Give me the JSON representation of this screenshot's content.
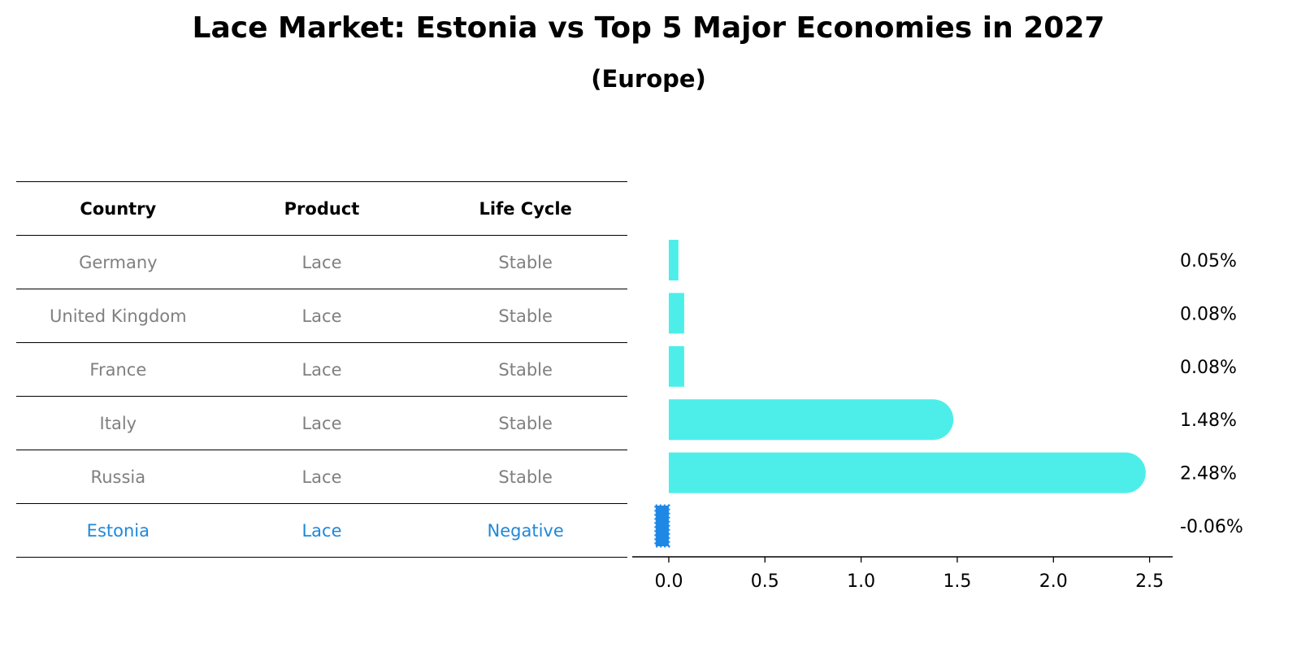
{
  "title": "Lace Market: Estonia vs Top 5 Major Economies in 2027",
  "subtitle": "(Europe)",
  "table": {
    "headers": [
      "Country",
      "Product",
      "Life Cycle"
    ],
    "rows": [
      [
        "Germany",
        "Lace",
        "Stable"
      ],
      [
        "United Kingdom",
        "Lace",
        "Stable"
      ],
      [
        "France",
        "Lace",
        "Stable"
      ],
      [
        "Italy",
        "Lace",
        "Stable"
      ],
      [
        "Russia",
        "Lace",
        "Stable"
      ],
      [
        "Estonia",
        "Lace",
        "Negative"
      ]
    ],
    "highlight_row": 5,
    "row_text_color": "#808080",
    "highlight_color": "#1f88d8"
  },
  "chart_data": {
    "type": "bar",
    "orientation": "horizontal",
    "categories": [
      "Germany",
      "United Kingdom",
      "France",
      "Italy",
      "Russia",
      "Estonia"
    ],
    "values": [
      0.05,
      0.08,
      0.08,
      1.48,
      2.48,
      -0.06
    ],
    "value_labels": [
      "0.05%",
      "0.08%",
      "0.08%",
      "1.48%",
      "2.48%",
      "-0.06%"
    ],
    "xlim": [
      -0.19,
      2.62
    ],
    "xticks": [
      0.0,
      0.5,
      1.0,
      1.5,
      2.0,
      2.5
    ],
    "xtick_labels": [
      "0.0",
      "0.5",
      "1.0",
      "1.5",
      "2.0",
      "2.5"
    ],
    "bar_color": "#4deeea",
    "negative_color": "#1f88e5",
    "grid": false
  }
}
